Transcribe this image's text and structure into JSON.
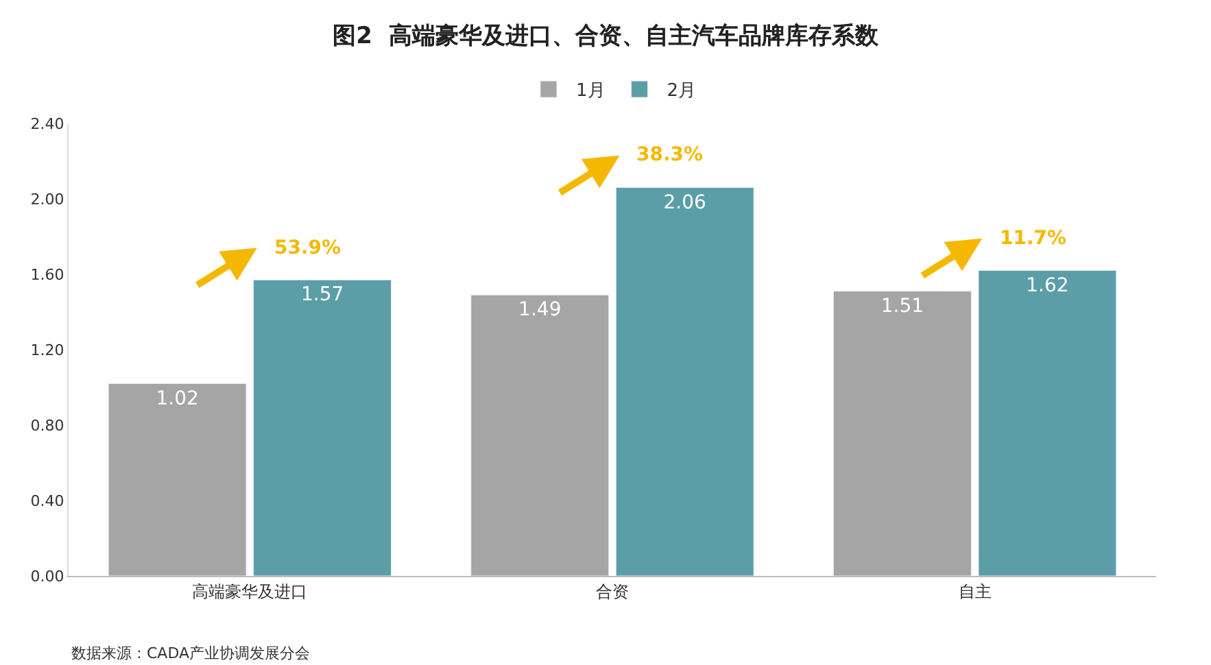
{
  "chart_data": {
    "type": "bar",
    "title": "图2  高端豪华及进口、合资、自主汽车品牌库存系数",
    "categories": [
      "高端豪华及进口",
      "合资",
      "自主"
    ],
    "series": [
      {
        "name": "1月",
        "color": "#a5a5a5",
        "values": [
          1.02,
          1.49,
          1.51
        ]
      },
      {
        "name": "2月",
        "color": "#5b9ea8",
        "values": [
          1.57,
          2.06,
          1.62
        ]
      }
    ],
    "ylim": [
      0,
      2.4
    ],
    "yticks": [
      {
        "value": 0,
        "label": "0.00"
      },
      {
        "value": 0.4,
        "label": "0.40"
      },
      {
        "value": 0.8,
        "label": "0.80"
      },
      {
        "value": 1.2,
        "label": "1.20"
      },
      {
        "value": 1.6,
        "label": "1.60"
      },
      {
        "value": 2.0,
        "label": "2.00"
      },
      {
        "value": 2.4,
        "label": "2.40"
      }
    ],
    "data_labels": true,
    "legend": "top",
    "annotations": [
      "53.9%",
      "38.3%",
      "11.7%",
      "数据来源：CADA产业协调发展分会"
    ]
  }
}
